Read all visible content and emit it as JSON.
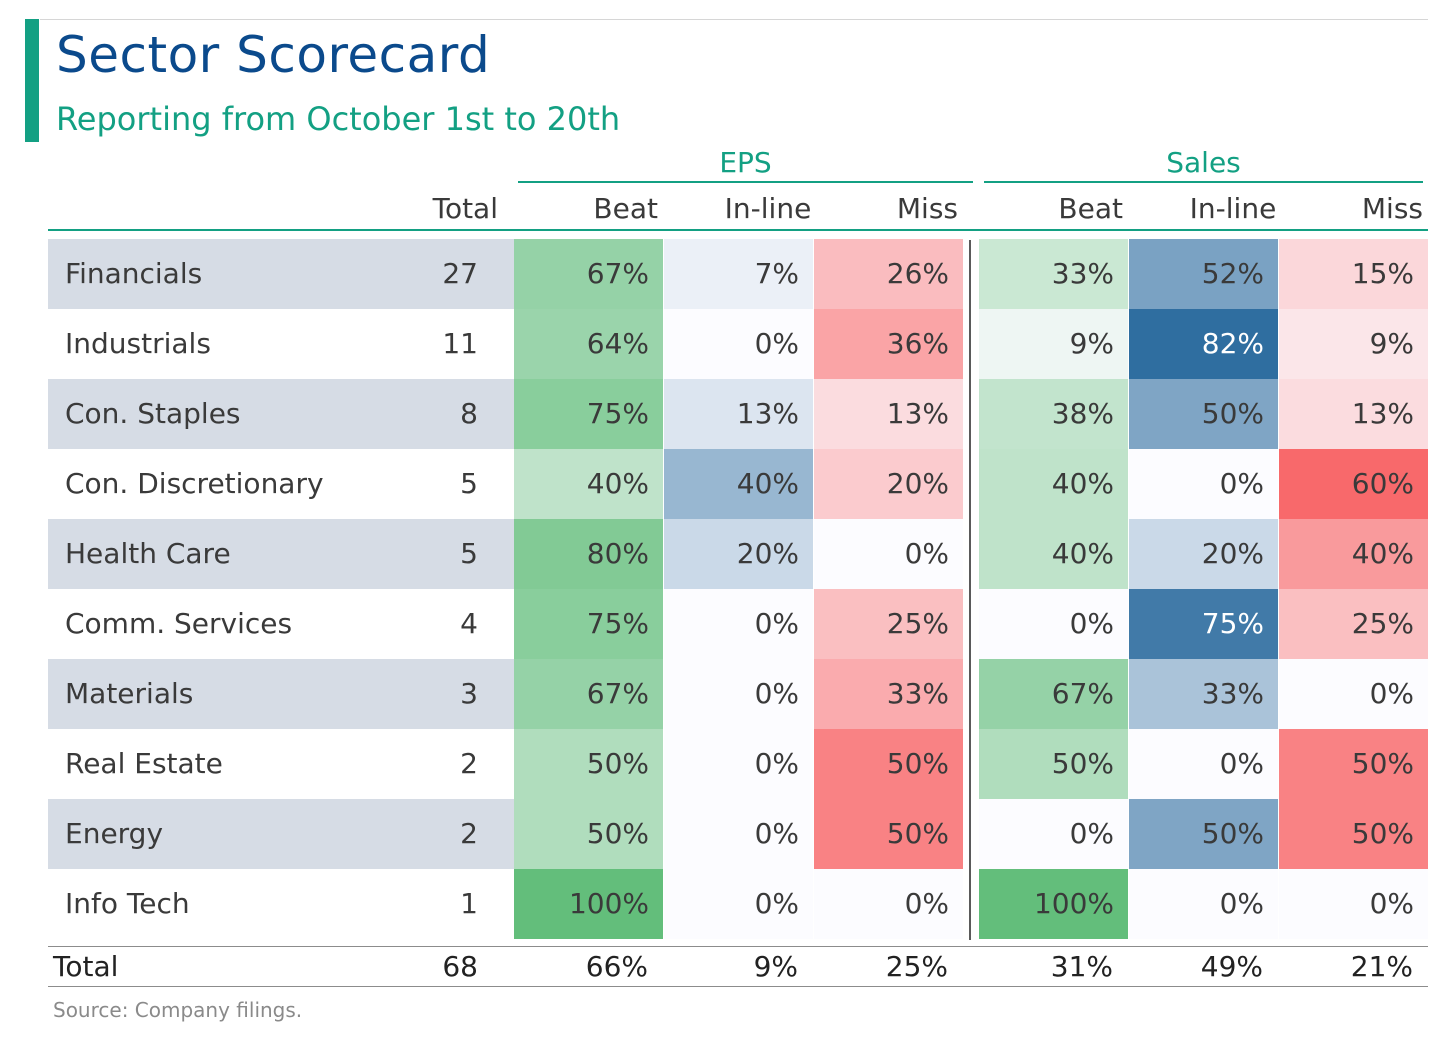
{
  "title": "Sector Scorecard",
  "subtitle": "Reporting from October 1st to 20th",
  "source": "Source: Company filings.",
  "colors": {
    "accent": "#13a083",
    "title": "#0b4a8c",
    "row_band": "#d6dce5",
    "beat": "#63be7b",
    "inline": "#2f6ea0",
    "miss": "#f8696b"
  },
  "chart_data": {
    "type": "table",
    "groups": [
      "EPS",
      "Sales"
    ],
    "columns": {
      "total": "Total",
      "beat": "Beat",
      "inline": "In-line",
      "miss": "Miss"
    },
    "rows": [
      {
        "sector": "Financials",
        "total": "27",
        "eps": [
          "67%",
          "7%",
          "26%"
        ],
        "sales": [
          "33%",
          "52%",
          "15%"
        ]
      },
      {
        "sector": "Industrials",
        "total": "11",
        "eps": [
          "64%",
          "0%",
          "36%"
        ],
        "sales": [
          "9%",
          "82%",
          "9%"
        ]
      },
      {
        "sector": "Con. Staples",
        "total": "8",
        "eps": [
          "75%",
          "13%",
          "13%"
        ],
        "sales": [
          "38%",
          "50%",
          "13%"
        ]
      },
      {
        "sector": "Con. Discretionary",
        "total": "5",
        "eps": [
          "40%",
          "40%",
          "20%"
        ],
        "sales": [
          "40%",
          "0%",
          "60%"
        ]
      },
      {
        "sector": "Health Care",
        "total": "5",
        "eps": [
          "80%",
          "20%",
          "0%"
        ],
        "sales": [
          "40%",
          "20%",
          "40%"
        ]
      },
      {
        "sector": "Comm. Services",
        "total": "4",
        "eps": [
          "75%",
          "0%",
          "25%"
        ],
        "sales": [
          "0%",
          "75%",
          "25%"
        ]
      },
      {
        "sector": "Materials",
        "total": "3",
        "eps": [
          "67%",
          "0%",
          "33%"
        ],
        "sales": [
          "67%",
          "33%",
          "0%"
        ]
      },
      {
        "sector": "Real Estate",
        "total": "2",
        "eps": [
          "50%",
          "0%",
          "50%"
        ],
        "sales": [
          "50%",
          "0%",
          "50%"
        ]
      },
      {
        "sector": "Energy",
        "total": "2",
        "eps": [
          "50%",
          "0%",
          "50%"
        ],
        "sales": [
          "0%",
          "50%",
          "50%"
        ]
      },
      {
        "sector": "Info Tech",
        "total": "1",
        "eps": [
          "100%",
          "0%",
          "0%"
        ],
        "sales": [
          "100%",
          "0%",
          "0%"
        ]
      }
    ],
    "total_row": {
      "label": "Total",
      "total": "68",
      "eps": [
        "66%",
        "9%",
        "25%"
      ],
      "sales": [
        "31%",
        "49%",
        "21%"
      ]
    }
  }
}
